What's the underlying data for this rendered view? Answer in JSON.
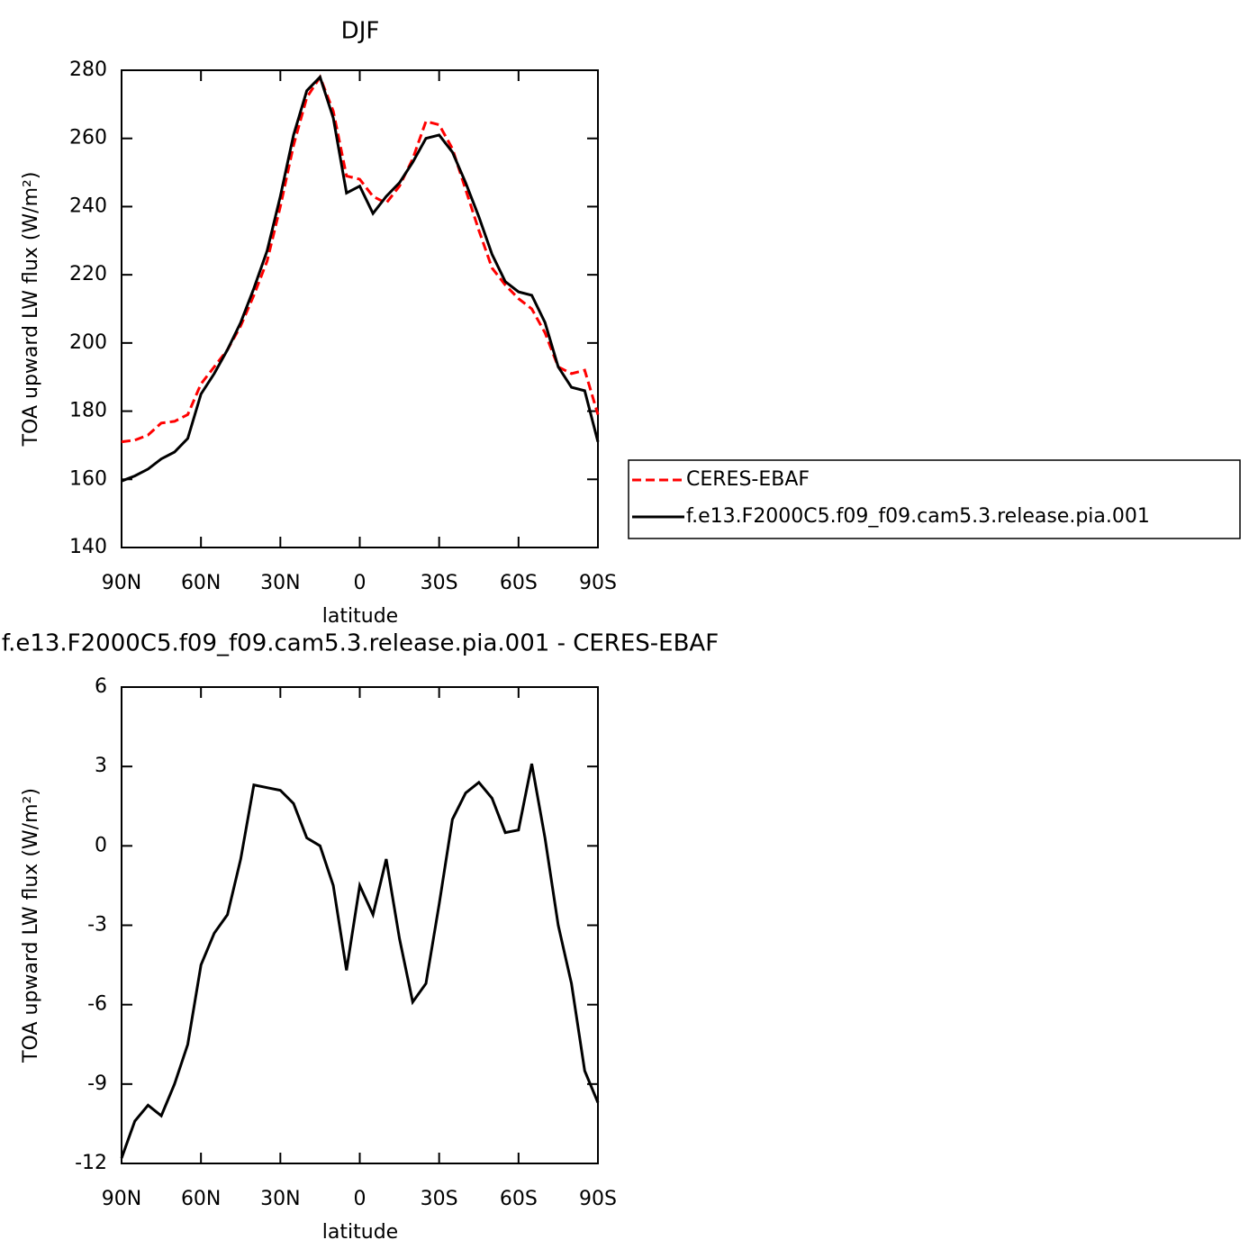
{
  "chart_data": [
    {
      "type": "line",
      "title": "DJF",
      "xlabel": "latitude",
      "ylabel": "TOA upward LW flux (W/m²)",
      "x": [
        90,
        85,
        80,
        75,
        70,
        65,
        60,
        55,
        50,
        45,
        40,
        35,
        30,
        25,
        20,
        15,
        10,
        5,
        0,
        -5,
        -10,
        -15,
        -20,
        -25,
        -30,
        -35,
        -40,
        -45,
        -50,
        -55,
        -60,
        -65,
        -70,
        -75,
        -80,
        -85,
        -90
      ],
      "series": [
        {
          "name": "CERES-EBAF",
          "color": "#ff0000",
          "dashed": true,
          "values": [
            171,
            171.5,
            173,
            176.5,
            177,
            179,
            188,
            193,
            198,
            205,
            214,
            224,
            240,
            258,
            272,
            278,
            268,
            249,
            248,
            243,
            241,
            246,
            254,
            265,
            264,
            257,
            245,
            233,
            222,
            217,
            213,
            210,
            203,
            193,
            191,
            192,
            179
          ]
        },
        {
          "name": "f.e13.F2000C5.f09_f09.cam5.3.release.pia.001",
          "color": "#000000",
          "dashed": false,
          "values": [
            159.5,
            161,
            163,
            166,
            168,
            172,
            185,
            191,
            198,
            206,
            216,
            227,
            243,
            261,
            274,
            278,
            266,
            244,
            246,
            238,
            243,
            247,
            253,
            260,
            261,
            256,
            247,
            237,
            226,
            218,
            215,
            214,
            206,
            193,
            187,
            186,
            171
          ]
        }
      ],
      "xlim": [
        90,
        -90
      ],
      "xticks": [
        {
          "value": 90,
          "label": "90N"
        },
        {
          "value": 60,
          "label": "60N"
        },
        {
          "value": 30,
          "label": "30N"
        },
        0,
        {
          "value": -30,
          "label": "30S"
        },
        {
          "value": -60,
          "label": "60S"
        },
        {
          "value": -90,
          "label": "90S"
        }
      ],
      "ylim": [
        140,
        280
      ],
      "yticks": [
        140,
        160,
        180,
        200,
        220,
        240,
        260,
        280
      ],
      "legend": "right"
    },
    {
      "type": "line",
      "title": "f.e13.F2000C5.f09_f09.cam5.3.release.pia.001 - CERES-EBAF",
      "xlabel": "latitude",
      "ylabel": "TOA upward LW flux (W/m²)",
      "x": [
        90,
        85,
        80,
        75,
        70,
        65,
        60,
        55,
        50,
        45,
        40,
        35,
        30,
        25,
        20,
        15,
        10,
        5,
        0,
        -5,
        -10,
        -15,
        -20,
        -25,
        -30,
        -35,
        -40,
        -45,
        -50,
        -55,
        -60,
        -65,
        -70,
        -75,
        -80,
        -85,
        -90
      ],
      "series": [
        {
          "color": "#000000",
          "dashed": false,
          "values": [
            -11.8,
            -10.4,
            -9.8,
            -10.2,
            -9,
            -7.5,
            -4.5,
            -3.3,
            -2.6,
            -0.5,
            2.3,
            2.2,
            2.1,
            1.6,
            0.3,
            0,
            -1.5,
            -4.7,
            -1.5,
            -2.6,
            -0.5,
            -3.5,
            -5.9,
            -5.2,
            -2.2,
            1,
            2,
            2.4,
            1.8,
            0.5,
            0.6,
            3.1,
            0.3,
            -3,
            -5.2,
            -8.5,
            -9.7
          ]
        }
      ],
      "xlim": [
        90,
        -90
      ],
      "xticks": [
        {
          "value": 90,
          "label": "90N"
        },
        {
          "value": 60,
          "label": "60N"
        },
        {
          "value": 30,
          "label": "30N"
        },
        0,
        {
          "value": -30,
          "label": "30S"
        },
        {
          "value": -60,
          "label": "60S"
        },
        {
          "value": -90,
          "label": "90S"
        }
      ],
      "ylim": [
        -12,
        6
      ],
      "yticks": [
        -12,
        -9,
        -6,
        -3,
        0,
        3,
        6
      ]
    }
  ]
}
